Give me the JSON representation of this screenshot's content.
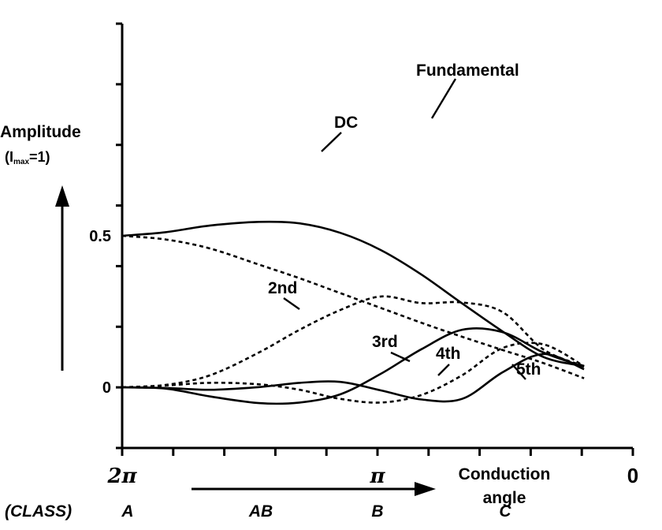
{
  "chart_data": {
    "type": "line",
    "title": "",
    "ylabel": "Amplitude",
    "ylabel_sub_prefix": "(I",
    "ylabel_sub": "max",
    "ylabel_sub_suffix": "=1)",
    "xlabel": "Conduction angle",
    "xlabel_line1": "Conduction",
    "xlabel_line2": "angle",
    "xlim": [
      6.2832,
      0
    ],
    "ylim": [
      -0.2,
      1.2
    ],
    "x_tick_labels": [
      "2π",
      "π",
      "0"
    ],
    "y_tick_labels": [
      "0.5",
      "0"
    ],
    "y_tick_values": [
      0.5,
      0
    ],
    "class_label": "(CLASS)",
    "classes": [
      {
        "name": "A",
        "angle": 6.2832
      },
      {
        "name": "AB",
        "angle": 4.7124
      },
      {
        "name": "B",
        "angle": 3.1416
      },
      {
        "name": "C",
        "angle": 1.5708
      }
    ],
    "series": [
      {
        "name": "Fundamental",
        "style": "solid",
        "x": [
          6.2832,
          5.75,
          5.2,
          4.6,
          4.1,
          3.6,
          3.1,
          2.6,
          2.1,
          1.6,
          1.1,
          0.6
        ],
        "y": [
          0.5,
          0.512,
          0.534,
          0.546,
          0.541,
          0.51,
          0.453,
          0.372,
          0.277,
          0.184,
          0.1,
          0.07
        ]
      },
      {
        "name": "DC",
        "style": "dashed",
        "x": [
          6.2832,
          5.75,
          5.2,
          4.6,
          4.1,
          3.6,
          3.1,
          2.6,
          2.1,
          1.6,
          1.1,
          0.6
        ],
        "y": [
          0.5,
          0.488,
          0.458,
          0.405,
          0.36,
          0.311,
          0.262,
          0.213,
          0.167,
          0.123,
          0.08,
          0.03
        ]
      },
      {
        "name": "2nd",
        "style": "dashed",
        "x": [
          6.2832,
          5.75,
          5.2,
          4.6,
          4.1,
          3.6,
          3.1,
          2.6,
          2.1,
          1.6,
          1.1,
          0.6
        ],
        "y": [
          0.0,
          0.008,
          0.04,
          0.115,
          0.19,
          0.255,
          0.3,
          0.278,
          0.28,
          0.248,
          0.125,
          0.07
        ]
      },
      {
        "name": "3rd",
        "style": "solid",
        "x": [
          6.2832,
          5.75,
          5.2,
          4.6,
          4.1,
          3.6,
          3.1,
          2.6,
          2.1,
          1.6,
          1.1,
          0.6
        ],
        "y": [
          0.0,
          -0.004,
          -0.03,
          -0.052,
          -0.05,
          -0.023,
          0.045,
          0.126,
          0.19,
          0.182,
          0.115,
          0.068
        ]
      },
      {
        "name": "4th",
        "style": "dashed",
        "x": [
          6.2832,
          5.75,
          5.2,
          4.6,
          4.1,
          3.6,
          3.1,
          2.6,
          2.1,
          1.6,
          1.1,
          0.6
        ],
        "y": [
          0.0,
          0.006,
          0.015,
          0.01,
          -0.008,
          -0.038,
          -0.05,
          -0.025,
          0.04,
          0.13,
          0.142,
          0.07
        ]
      },
      {
        "name": "5th",
        "style": "solid",
        "x": [
          6.2832,
          5.75,
          5.2,
          4.6,
          4.1,
          3.6,
          3.1,
          2.6,
          2.1,
          1.6,
          1.1,
          0.6
        ],
        "y": [
          0.0,
          -0.002,
          -0.008,
          0.001,
          0.015,
          0.018,
          -0.01,
          -0.04,
          -0.038,
          0.05,
          0.11,
          0.06
        ]
      }
    ]
  }
}
